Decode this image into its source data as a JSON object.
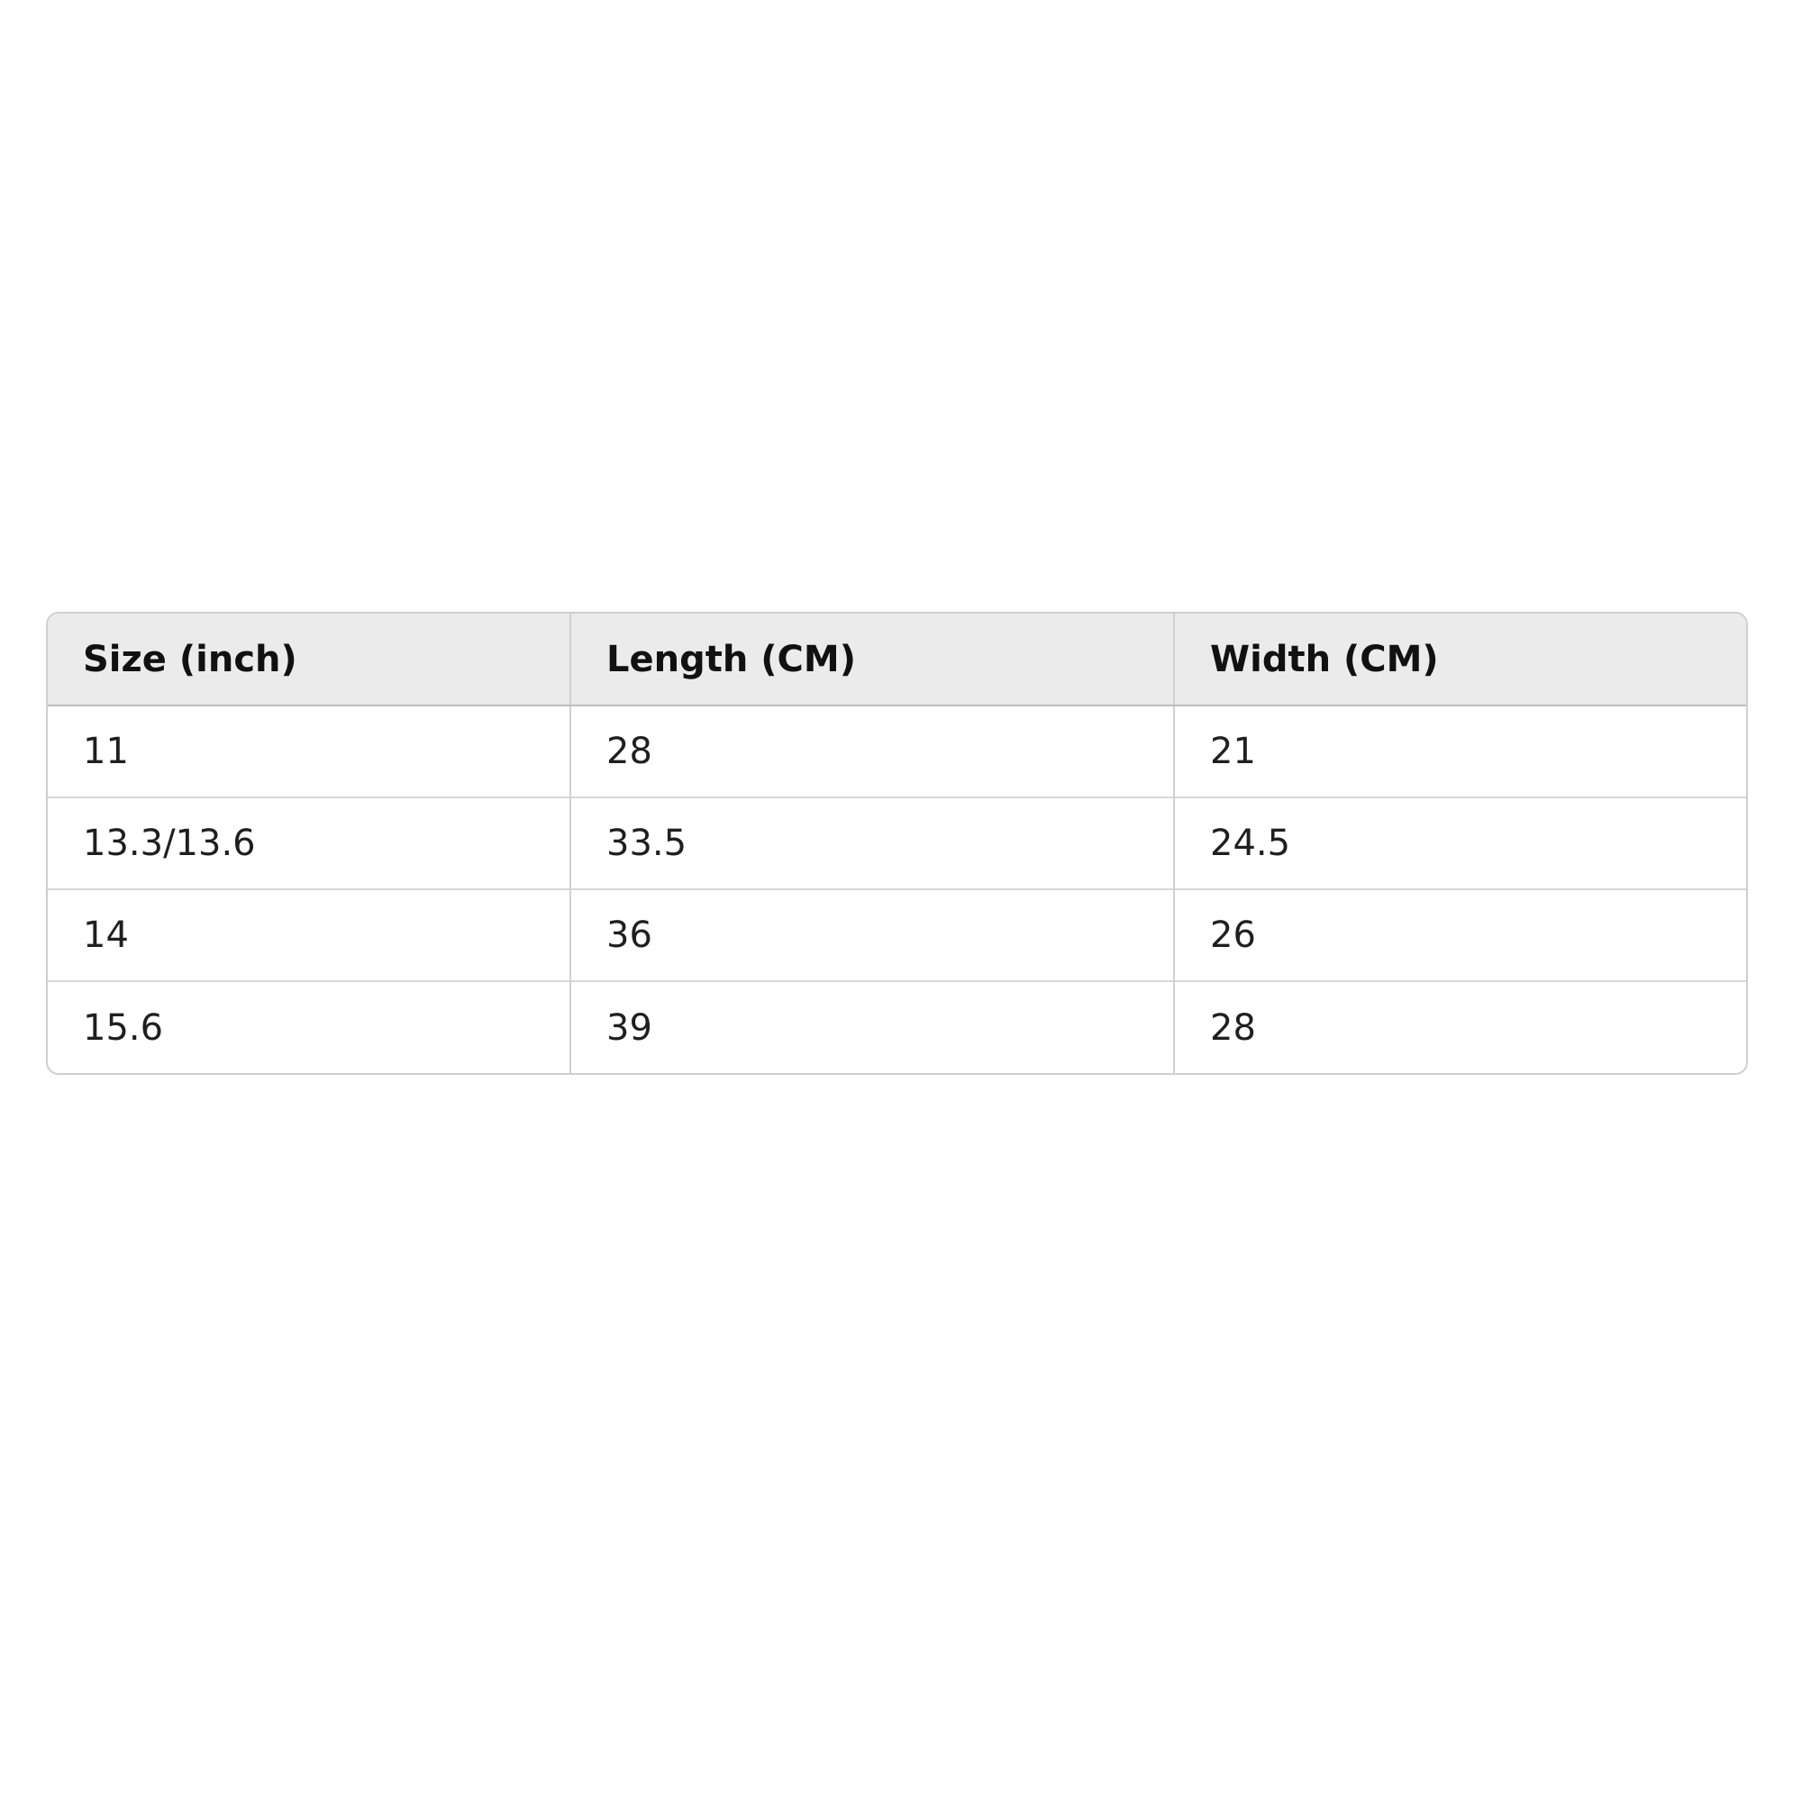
{
  "size_table": {
    "headers": [
      "Size (inch)",
      "Length (CM)",
      "Width (CM)"
    ],
    "rows": [
      [
        "11",
        "28",
        "21"
      ],
      [
        "13.3/13.6",
        "33.5",
        "24.5"
      ],
      [
        "14",
        "36",
        "26"
      ],
      [
        "15.6",
        "39",
        "28"
      ]
    ]
  }
}
